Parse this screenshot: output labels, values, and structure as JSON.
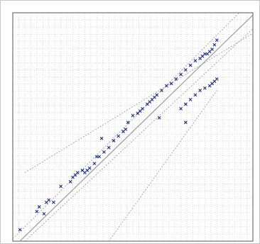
{
  "chart_data": {
    "type": "scatter",
    "title": "",
    "xlabel": "",
    "ylabel": "",
    "grid": true,
    "xlim": [
      0,
      100
    ],
    "ylim": [
      0,
      100
    ],
    "colors": {
      "points": "#1b2a8c",
      "fit_line": "#9a9a9a",
      "band_line": "#a0a0a0",
      "grid": "#d8d8d8",
      "frame": "#555555"
    },
    "series": [
      {
        "values": [
          {
            "x": 3,
            "y": 5
          },
          {
            "x": 10,
            "y": 13
          },
          {
            "x": 11,
            "y": 15
          },
          {
            "x": 13,
            "y": 12
          },
          {
            "x": 14,
            "y": 17
          },
          {
            "x": 15,
            "y": 18
          },
          {
            "x": 17,
            "y": 17
          },
          {
            "x": 20,
            "y": 24
          },
          {
            "x": 24,
            "y": 26
          },
          {
            "x": 25,
            "y": 28
          },
          {
            "x": 26,
            "y": 29
          },
          {
            "x": 27,
            "y": 30
          },
          {
            "x": 29,
            "y": 31
          },
          {
            "x": 30,
            "y": 30
          },
          {
            "x": 31,
            "y": 31
          },
          {
            "x": 32,
            "y": 32
          },
          {
            "x": 34,
            "y": 34
          },
          {
            "x": 36,
            "y": 37
          },
          {
            "x": 38,
            "y": 39
          },
          {
            "x": 40,
            "y": 41
          },
          {
            "x": 42,
            "y": 44
          },
          {
            "x": 44,
            "y": 46
          },
          {
            "x": 46,
            "y": 48
          },
          {
            "x": 47,
            "y": 49
          },
          {
            "x": 48,
            "y": 52
          },
          {
            "x": 50,
            "y": 55
          },
          {
            "x": 52,
            "y": 56
          },
          {
            "x": 53,
            "y": 57
          },
          {
            "x": 54,
            "y": 58
          },
          {
            "x": 56,
            "y": 60
          },
          {
            "x": 58,
            "y": 62
          },
          {
            "x": 59,
            "y": 63
          },
          {
            "x": 60,
            "y": 64
          },
          {
            "x": 62,
            "y": 66
          },
          {
            "x": 64,
            "y": 68
          },
          {
            "x": 66,
            "y": 69
          },
          {
            "x": 68,
            "y": 71
          },
          {
            "x": 70,
            "y": 73
          },
          {
            "x": 72,
            "y": 75
          },
          {
            "x": 74,
            "y": 77
          },
          {
            "x": 76,
            "y": 79
          },
          {
            "x": 78,
            "y": 80
          },
          {
            "x": 79,
            "y": 81
          },
          {
            "x": 80,
            "y": 82
          },
          {
            "x": 81,
            "y": 82
          },
          {
            "x": 82,
            "y": 83
          },
          {
            "x": 83,
            "y": 84
          },
          {
            "x": 84,
            "y": 86
          },
          {
            "x": 85,
            "y": 88
          },
          {
            "x": 70,
            "y": 58
          },
          {
            "x": 72,
            "y": 60
          },
          {
            "x": 74,
            "y": 62
          },
          {
            "x": 76,
            "y": 64
          },
          {
            "x": 78,
            "y": 66
          },
          {
            "x": 80,
            "y": 67
          },
          {
            "x": 82,
            "y": 68
          },
          {
            "x": 83,
            "y": 69
          },
          {
            "x": 84,
            "y": 70
          },
          {
            "x": 85,
            "y": 71
          },
          {
            "x": 72,
            "y": 52
          },
          {
            "x": 61,
            "y": 54
          },
          {
            "x": 57,
            "y": 61
          },
          {
            "x": 37,
            "y": 45
          },
          {
            "x": 35,
            "y": 37
          }
        ]
      }
    ],
    "reference_lines": [
      {
        "kind": "fit",
        "x": [
          0,
          100
        ],
        "y": [
          -3,
          99
        ]
      },
      {
        "kind": "band",
        "x": [
          0,
          100
        ],
        "y": [
          1,
          106
        ]
      },
      {
        "kind": "band",
        "x": [
          5,
          100
        ],
        "y": [
          0,
          93
        ]
      },
      {
        "kind": "band",
        "x": [
          5,
          100
        ],
        "y": [
          30,
          91
        ]
      },
      {
        "kind": "band",
        "x": [
          40,
          85
        ],
        "y": [
          0,
          66
        ]
      }
    ]
  }
}
